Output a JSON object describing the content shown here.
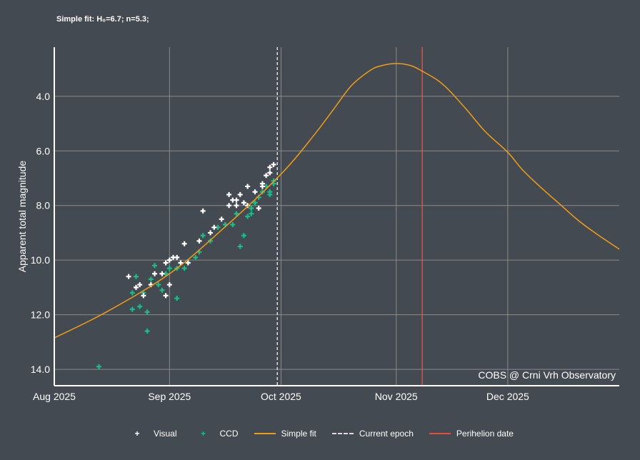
{
  "subtitle": "Simple fit: H₀=6.7; n=5.3;",
  "watermark": "COBS @ Crni Vrh Observatory",
  "chart_data": {
    "type": "scatter",
    "ylabel": "Apparent total magnitude",
    "y_inverted": true,
    "ylim": [
      14.6,
      2.2
    ],
    "xlim": [
      "2025-08-01",
      "2025-12-31"
    ],
    "yticks": [
      "4.0",
      "6.0",
      "8.0",
      "10.0",
      "12.0",
      "14.0"
    ],
    "xticks": [
      {
        "date": "2025-08-01",
        "label": "Aug 2025"
      },
      {
        "date": "2025-09-01",
        "label": "Sep 2025"
      },
      {
        "date": "2025-10-01",
        "label": "Oct 2025"
      },
      {
        "date": "2025-11-01",
        "label": "Nov 2025"
      },
      {
        "date": "2025-12-01",
        "label": "Dec 2025"
      }
    ],
    "grid": true,
    "legend_placement": "bottom",
    "current_epoch": "2025-09-30",
    "perihelion_date": "2025-11-08",
    "colors": {
      "visual": "#ffffff",
      "ccd": "#1abc8c",
      "fit": "#f39c12",
      "epoch": "#dddddd",
      "perihelion": "#e74c3c"
    },
    "series": [
      {
        "name": "Visual",
        "type": "scatter",
        "points": [
          [
            "2025-08-21",
            10.6
          ],
          [
            "2025-08-23",
            11.0
          ],
          [
            "2025-08-24",
            10.9
          ],
          [
            "2025-08-25",
            11.3
          ],
          [
            "2025-08-27",
            10.9
          ],
          [
            "2025-08-28",
            10.5
          ],
          [
            "2025-08-30",
            10.5
          ],
          [
            "2025-08-31",
            10.1
          ],
          [
            "2025-08-31",
            11.3
          ],
          [
            "2025-09-01",
            10.0
          ],
          [
            "2025-09-01",
            10.9
          ],
          [
            "2025-09-02",
            9.9
          ],
          [
            "2025-09-03",
            9.9
          ],
          [
            "2025-09-04",
            10.1
          ],
          [
            "2025-09-05",
            9.4
          ],
          [
            "2025-09-06",
            10.1
          ],
          [
            "2025-09-09",
            9.3
          ],
          [
            "2025-09-10",
            8.2
          ],
          [
            "2025-09-12",
            9.0
          ],
          [
            "2025-09-13",
            8.8
          ],
          [
            "2025-09-15",
            8.5
          ],
          [
            "2025-09-17",
            8.0
          ],
          [
            "2025-09-17",
            7.6
          ],
          [
            "2025-09-18",
            7.8
          ],
          [
            "2025-09-19",
            7.8
          ],
          [
            "2025-09-19",
            8.0
          ],
          [
            "2025-09-20",
            7.6
          ],
          [
            "2025-09-21",
            7.9
          ],
          [
            "2025-09-22",
            7.3
          ],
          [
            "2025-09-22",
            8.0
          ],
          [
            "2025-09-24",
            7.5
          ],
          [
            "2025-09-25",
            8.1
          ],
          [
            "2025-09-26",
            7.2
          ],
          [
            "2025-09-26",
            7.3
          ],
          [
            "2025-09-27",
            6.9
          ],
          [
            "2025-09-28",
            6.8
          ],
          [
            "2025-09-28",
            6.6
          ],
          [
            "2025-09-29",
            6.5
          ]
        ]
      },
      {
        "name": "CCD",
        "type": "scatter",
        "points": [
          [
            "2025-08-13",
            13.9
          ],
          [
            "2025-08-22",
            11.2
          ],
          [
            "2025-08-22",
            11.8
          ],
          [
            "2025-08-23",
            10.6
          ],
          [
            "2025-08-24",
            11.7
          ],
          [
            "2025-08-26",
            12.6
          ],
          [
            "2025-08-26",
            11.9
          ],
          [
            "2025-08-25",
            11.2
          ],
          [
            "2025-08-27",
            10.7
          ],
          [
            "2025-08-28",
            10.2
          ],
          [
            "2025-08-29",
            10.9
          ],
          [
            "2025-08-30",
            11.1
          ],
          [
            "2025-08-31",
            10.5
          ],
          [
            "2025-09-01",
            10.3
          ],
          [
            "2025-09-03",
            11.4
          ],
          [
            "2025-09-03",
            10.3
          ],
          [
            "2025-09-04",
            10.1
          ],
          [
            "2025-09-05",
            10.3
          ],
          [
            "2025-09-08",
            9.9
          ],
          [
            "2025-09-09",
            9.7
          ],
          [
            "2025-09-10",
            9.1
          ],
          [
            "2025-09-12",
            9.3
          ],
          [
            "2025-09-14",
            8.8
          ],
          [
            "2025-09-16",
            8.7
          ],
          [
            "2025-09-18",
            8.7
          ],
          [
            "2025-09-19",
            8.3
          ],
          [
            "2025-09-20",
            9.5
          ],
          [
            "2025-09-21",
            9.1
          ],
          [
            "2025-09-22",
            8.4
          ],
          [
            "2025-09-23",
            8.1
          ],
          [
            "2025-09-23",
            8.3
          ],
          [
            "2025-09-24",
            7.9
          ],
          [
            "2025-09-25",
            7.7
          ],
          [
            "2025-09-26",
            7.5
          ],
          [
            "2025-09-27",
            7.3
          ],
          [
            "2025-09-28",
            7.6
          ],
          [
            "2025-09-28",
            7.5
          ],
          [
            "2025-09-29",
            7.1
          ],
          [
            "2025-09-29",
            7.2
          ]
        ]
      },
      {
        "name": "Simple fit",
        "type": "line",
        "points": [
          [
            "2025-08-01",
            12.85
          ],
          [
            "2025-08-15",
            11.9
          ],
          [
            "2025-09-01",
            10.5
          ],
          [
            "2025-09-15",
            8.9
          ],
          [
            "2025-10-01",
            6.85
          ],
          [
            "2025-10-10",
            5.4
          ],
          [
            "2025-10-15",
            4.5
          ],
          [
            "2025-10-20",
            3.6
          ],
          [
            "2025-10-25",
            3.05
          ],
          [
            "2025-10-28",
            2.88
          ],
          [
            "2025-11-01",
            2.8
          ],
          [
            "2025-11-05",
            2.88
          ],
          [
            "2025-11-08",
            3.08
          ],
          [
            "2025-11-12",
            3.4
          ],
          [
            "2025-11-15",
            3.75
          ],
          [
            "2025-11-20",
            4.5
          ],
          [
            "2025-11-25",
            5.3
          ],
          [
            "2025-12-01",
            6.05
          ],
          [
            "2025-12-05",
            6.7
          ],
          [
            "2025-12-10",
            7.35
          ],
          [
            "2025-12-15",
            7.95
          ],
          [
            "2025-12-20",
            8.55
          ],
          [
            "2025-12-25",
            9.05
          ],
          [
            "2025-12-31",
            9.6
          ]
        ]
      }
    ],
    "legend": [
      "Visual",
      "CCD",
      "Simple fit",
      "Current epoch",
      "Perihelion date"
    ]
  }
}
